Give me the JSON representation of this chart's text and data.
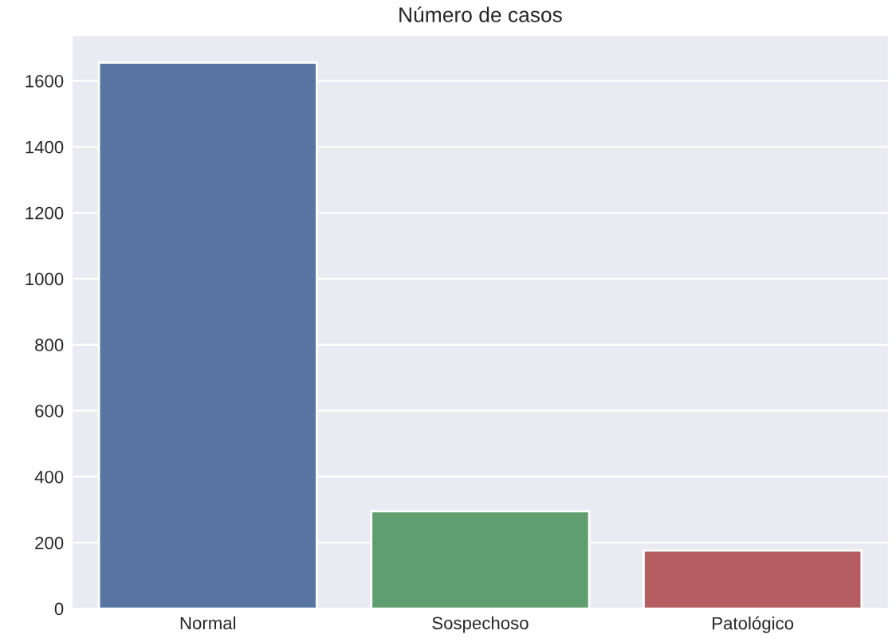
{
  "chart_data": {
    "type": "bar",
    "title": "Número de casos",
    "categories": [
      "Normal",
      "Sospechoso",
      "Patológico"
    ],
    "values": [
      1655,
      295,
      176
    ],
    "colors": [
      "#5975a4",
      "#5f9e6e",
      "#b55d60"
    ],
    "ylim": [
      0,
      1738
    ],
    "yticks": [
      0,
      200,
      400,
      600,
      800,
      1000,
      1200,
      1400,
      1600
    ],
    "grid": "y"
  }
}
